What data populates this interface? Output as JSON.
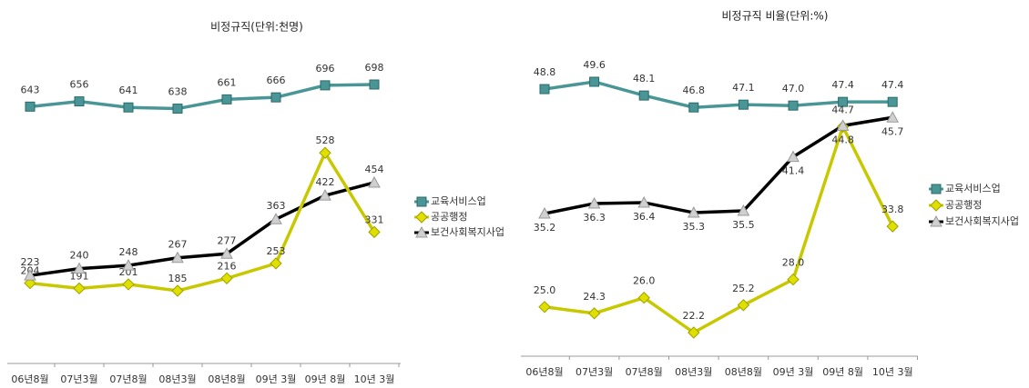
{
  "chart_data": [
    {
      "type": "line",
      "title": "비정규직(단위:천명)",
      "categories": [
        "06년8월",
        "07년3월",
        "07년8월",
        "08년3월",
        "08년8월",
        "09년 3월",
        "09년 8월",
        "10년 3월"
      ],
      "series": [
        {
          "name": "교육서비스업",
          "color": "#4a9696",
          "marker": "square",
          "marker_color": "#4a9696",
          "values": [
            643,
            656,
            641,
            638,
            661,
            666,
            696,
            698
          ]
        },
        {
          "name": "공공행정",
          "color": "#c8c800",
          "marker": "diamond",
          "marker_color": "#e0e000",
          "values": [
            204,
            191,
            201,
            185,
            216,
            253,
            528,
            331
          ]
        },
        {
          "name": "보건사회복지사업",
          "color": "#000000",
          "marker": "triangle",
          "marker_color": "#d0d0d0",
          "values": [
            223,
            240,
            248,
            267,
            277,
            363,
            422,
            454
          ]
        }
      ]
    },
    {
      "type": "line",
      "title": "비정규직 비율(단위:%)",
      "categories": [
        "06년8월",
        "07년3월",
        "07년8월",
        "08년3월",
        "08년8월",
        "09년 3월",
        "09년 8월",
        "10년 3월"
      ],
      "series": [
        {
          "name": "교육서비스업",
          "color": "#4a9696",
          "marker": "square",
          "marker_color": "#4a9696",
          "values": [
            48.8,
            49.6,
            48.1,
            46.8,
            47.1,
            47.0,
            47.4,
            47.4
          ],
          "value_labels": [
            "48.8",
            "49.6",
            "48.1",
            "46.8",
            "47.1",
            "47.0",
            "47.4",
            "47.4"
          ]
        },
        {
          "name": "공공행정",
          "color": "#c8c800",
          "marker": "diamond",
          "marker_color": "#e0e000",
          "values": [
            25.0,
            24.3,
            26.0,
            22.2,
            25.2,
            28.0,
            44.7,
            33.8
          ],
          "value_labels": [
            "25.0",
            "24.3",
            "26.0",
            "22.2",
            "25.2",
            "28.0",
            "44.7",
            "33.8"
          ]
        },
        {
          "name": "보건사회복지사업",
          "color": "#000000",
          "marker": "triangle",
          "marker_color": "#d0d0d0",
          "values": [
            35.2,
            36.3,
            36.4,
            35.3,
            35.5,
            41.4,
            44.8,
            45.7
          ],
          "value_labels": [
            "35.2",
            "36.3",
            "36.4",
            "35.3",
            "35.5",
            "41.4",
            "44.8",
            "45.7"
          ]
        }
      ]
    }
  ]
}
